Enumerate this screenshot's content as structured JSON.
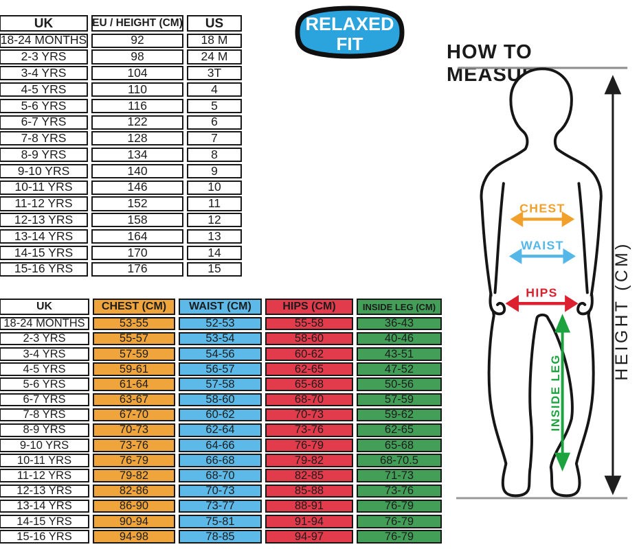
{
  "size_table": {
    "headers": [
      "UK",
      "EU / HEIGHT (CM)",
      "US"
    ],
    "column_colors": [
      "#ffffff",
      "#ffffff",
      "#ffffff"
    ],
    "rows": [
      [
        "18-24 MONTHS",
        "92",
        "18 M"
      ],
      [
        "2-3 YRS",
        "98",
        "24 M"
      ],
      [
        "3-4 YRS",
        "104",
        "3T"
      ],
      [
        "4-5 YRS",
        "110",
        "4"
      ],
      [
        "5-6 YRS",
        "116",
        "5"
      ],
      [
        "6-7 YRS",
        "122",
        "6"
      ],
      [
        "7-8 YRS",
        "128",
        "7"
      ],
      [
        "8-9 YRS",
        "134",
        "8"
      ],
      [
        "9-10 YRS",
        "140",
        "9"
      ],
      [
        "10-11 YRS",
        "146",
        "10"
      ],
      [
        "11-12 YRS",
        "152",
        "11"
      ],
      [
        "12-13 YRS",
        "158",
        "12"
      ],
      [
        "13-14 YRS",
        "164",
        "13"
      ],
      [
        "14-15 YRS",
        "170",
        "14"
      ],
      [
        "15-16 YRS",
        "176",
        "15"
      ]
    ]
  },
  "body_table": {
    "headers": [
      "UK",
      "CHEST (CM)",
      "WAIST (CM)",
      "HIPS (CM)",
      "INSIDE LEG (CM)"
    ],
    "column_colors": [
      "#ffffff",
      "#efa53c",
      "#5cb9e8",
      "#e23b4b",
      "#439e58"
    ],
    "rows": [
      [
        "18-24 MONTHS",
        "53-55",
        "52-53",
        "55-58",
        "36-43"
      ],
      [
        "2-3 YRS",
        "55-57",
        "53-54",
        "58-60",
        "40-46"
      ],
      [
        "3-4 YRS",
        "57-59",
        "54-56",
        "60-62",
        "43-51"
      ],
      [
        "4-5 YRS",
        "59-61",
        "56-57",
        "62-65",
        "47-52"
      ],
      [
        "5-6 YRS",
        "61-64",
        "57-58",
        "65-68",
        "50-56"
      ],
      [
        "6-7 YRS",
        "63-67",
        "58-60",
        "68-70",
        "57-59"
      ],
      [
        "7-8 YRS",
        "67-70",
        "60-62",
        "70-73",
        "59-62"
      ],
      [
        "8-9 YRS",
        "70-73",
        "62-64",
        "73-76",
        "62-65"
      ],
      [
        "9-10 YRS",
        "73-76",
        "64-66",
        "76-79",
        "65-68"
      ],
      [
        "10-11 YRS",
        "76-79",
        "66-68",
        "79-82",
        "68-70.5"
      ],
      [
        "11-12 YRS",
        "79-82",
        "68-70",
        "82-85",
        "71-73"
      ],
      [
        "12-13 YRS",
        "82-86",
        "70-73",
        "85-88",
        "73-76"
      ],
      [
        "13-14 YRS",
        "86-90",
        "73-77",
        "88-91",
        "76-79"
      ],
      [
        "14-15 YRS",
        "90-94",
        "75-81",
        "91-94",
        "76-79"
      ],
      [
        "15-16 YRS",
        "94-98",
        "78-85",
        "94-97",
        "76-79"
      ]
    ]
  },
  "badge": {
    "line1": "RELAXED",
    "line2": "FIT",
    "fill": "#2ba3dd",
    "border": "#101010",
    "text_color": "#ffffff"
  },
  "measure": {
    "title": "HOW TO MEASURE",
    "labels": {
      "chest": "CHEST",
      "waist": "WAIST",
      "hips": "HIPS",
      "inside_leg": "INSIDE LEG",
      "height": "HEIGHT (CM)"
    },
    "colors": {
      "chest": "#f0a02b",
      "waist": "#54b7e8",
      "hips": "#dc202f",
      "inside_leg": "#1ca23e",
      "height": "#1e1e1e"
    }
  }
}
